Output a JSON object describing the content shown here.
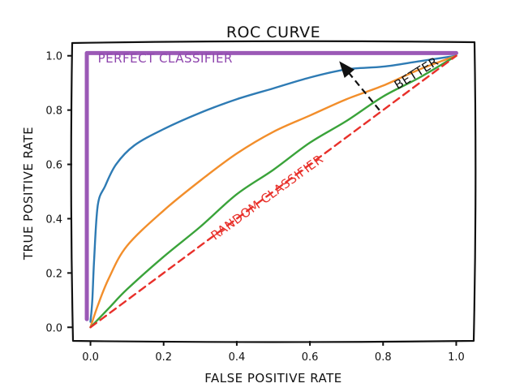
{
  "chart_data": {
    "type": "line",
    "title": "ROC CURVE",
    "xlabel": "FALSE POSITIVE RATE",
    "ylabel": "TRUE POSITIVE RATE",
    "xlim": [
      -0.05,
      1.05
    ],
    "ylim": [
      -0.05,
      1.05
    ],
    "xticks": [
      "0.0",
      "0.2",
      "0.4",
      "0.6",
      "0.8",
      "1.0"
    ],
    "yticks": [
      "0.0",
      "0.2",
      "0.4",
      "0.6",
      "0.8",
      "1.0"
    ],
    "grid": false,
    "legend": "none",
    "series": [
      {
        "name": "PERFECT CLASSIFIER",
        "color": "#9b59b6",
        "dash": "solid",
        "points": [
          [
            -0.01,
            0.03
          ],
          [
            -0.01,
            1.01
          ],
          [
            1.0,
            1.01
          ]
        ]
      },
      {
        "name": "",
        "color": "#2e7bb4",
        "dash": "solid",
        "points": [
          [
            0.0,
            0.02
          ],
          [
            0.005,
            0.1
          ],
          [
            0.01,
            0.25
          ],
          [
            0.02,
            0.45
          ],
          [
            0.04,
            0.52
          ],
          [
            0.07,
            0.6
          ],
          [
            0.12,
            0.67
          ],
          [
            0.2,
            0.73
          ],
          [
            0.3,
            0.79
          ],
          [
            0.4,
            0.84
          ],
          [
            0.5,
            0.88
          ],
          [
            0.6,
            0.92
          ],
          [
            0.7,
            0.95
          ],
          [
            0.8,
            0.96
          ],
          [
            0.9,
            0.98
          ],
          [
            1.0,
            1.0
          ]
        ]
      },
      {
        "name": "",
        "color": "#f28e2b",
        "dash": "solid",
        "points": [
          [
            0.0,
            0.0
          ],
          [
            0.02,
            0.08
          ],
          [
            0.05,
            0.18
          ],
          [
            0.1,
            0.3
          ],
          [
            0.2,
            0.43
          ],
          [
            0.3,
            0.54
          ],
          [
            0.4,
            0.64
          ],
          [
            0.5,
            0.72
          ],
          [
            0.6,
            0.78
          ],
          [
            0.7,
            0.84
          ],
          [
            0.8,
            0.89
          ],
          [
            0.9,
            0.95
          ],
          [
            1.0,
            1.0
          ]
        ]
      },
      {
        "name": "",
        "color": "#3aa33a",
        "dash": "solid",
        "points": [
          [
            0.0,
            0.0
          ],
          [
            0.05,
            0.07
          ],
          [
            0.1,
            0.14
          ],
          [
            0.2,
            0.26
          ],
          [
            0.3,
            0.37
          ],
          [
            0.4,
            0.49
          ],
          [
            0.5,
            0.58
          ],
          [
            0.6,
            0.68
          ],
          [
            0.7,
            0.76
          ],
          [
            0.8,
            0.85
          ],
          [
            0.9,
            0.92
          ],
          [
            1.0,
            1.0
          ]
        ]
      },
      {
        "name": "RANDOM CLASSIFIER",
        "color": "#e8302a",
        "dash": "dashed",
        "points": [
          [
            0.0,
            0.0
          ],
          [
            0.2,
            0.2
          ],
          [
            0.4,
            0.4
          ],
          [
            0.6,
            0.6
          ],
          [
            0.8,
            0.8
          ],
          [
            1.0,
            1.0
          ]
        ]
      }
    ],
    "annotations": [
      {
        "text": "PERFECT CLASSIFIER",
        "x": 0.02,
        "y": 0.975,
        "color": "#8e44ad",
        "rotation": 0
      },
      {
        "text": "RANDOM CLASSIFIER",
        "x": 0.34,
        "y": 0.32,
        "color": "#e8302a",
        "rotation": -36
      },
      {
        "text": "BETTER",
        "x": 0.84,
        "y": 0.875,
        "color": "#111111",
        "rotation": -32
      }
    ],
    "arrow": {
      "from": [
        0.79,
        0.8
      ],
      "to": [
        0.68,
        0.98
      ],
      "color": "#111111"
    }
  }
}
